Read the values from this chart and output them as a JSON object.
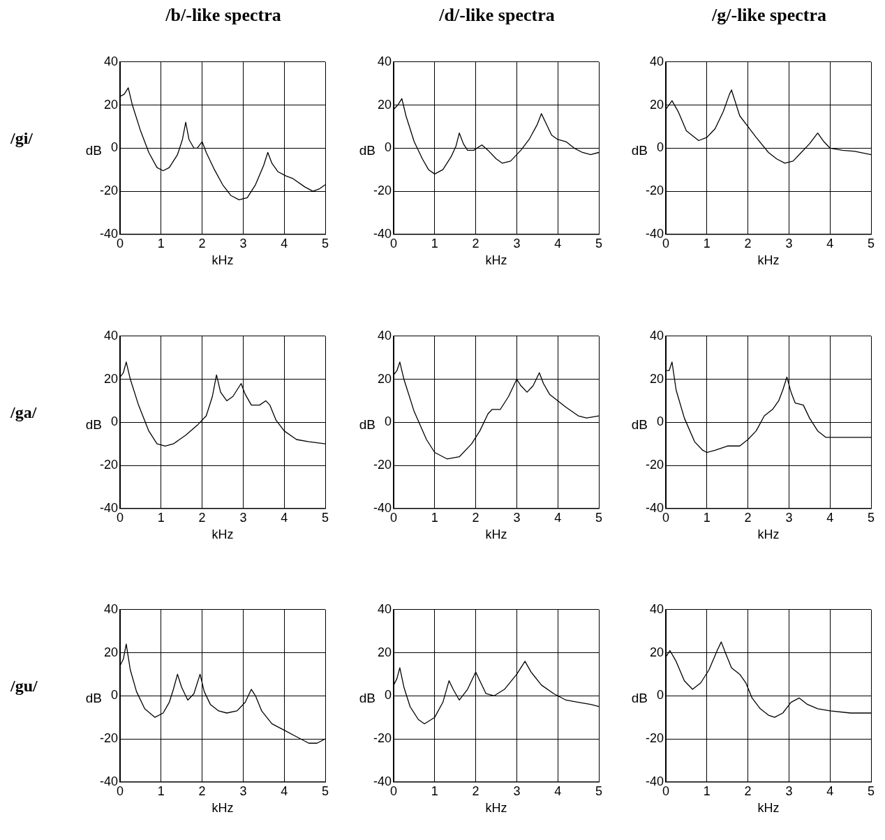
{
  "chart_data": [
    {
      "type": "line",
      "title": "/b/-like spectra",
      "annotations": [
        "/gi/"
      ],
      "xlabel": "kHz",
      "ylabel": "dB",
      "xlim": [
        0,
        5
      ],
      "ylim": [
        -40,
        40
      ],
      "xticks": [
        0,
        1,
        2,
        3,
        4,
        5
      ],
      "yticks": [
        -40,
        -20,
        0,
        20,
        40
      ],
      "grid": true,
      "legend": false,
      "series": [
        {
          "color": "#000000",
          "x": [
            0,
            0.1,
            0.2,
            0.3,
            0.5,
            0.7,
            0.9,
            1.05,
            1.2,
            1.4,
            1.52,
            1.6,
            1.68,
            1.8,
            1.88,
            2.0,
            2.1,
            2.3,
            2.5,
            2.7,
            2.9,
            3.1,
            3.3,
            3.5,
            3.6,
            3.7,
            3.85,
            4.05,
            4.2,
            4.5,
            4.7,
            4.85,
            5
          ],
          "values": [
            24,
            25,
            28,
            20,
            8,
            -2,
            -9,
            -10.5,
            -9,
            -3,
            4,
            12,
            4,
            0,
            0,
            3,
            -2,
            -10,
            -17,
            -22,
            -24,
            -23,
            -17,
            -8,
            -2,
            -7,
            -11,
            -13,
            -14,
            -18,
            -20,
            -19,
            -17
          ]
        }
      ]
    },
    {
      "type": "line",
      "title": "/d/-like spectra",
      "xlabel": "kHz",
      "ylabel": "dB",
      "xlim": [
        0,
        5
      ],
      "ylim": [
        -40,
        40
      ],
      "xticks": [
        0,
        1,
        2,
        3,
        4,
        5
      ],
      "yticks": [
        -40,
        -20,
        0,
        20,
        40
      ],
      "grid": true,
      "legend": false,
      "series": [
        {
          "color": "#000000",
          "x": [
            0,
            0.1,
            0.2,
            0.3,
            0.5,
            0.7,
            0.85,
            1.0,
            1.2,
            1.4,
            1.52,
            1.6,
            1.7,
            1.8,
            1.95,
            2.15,
            2.3,
            2.5,
            2.65,
            2.85,
            3.1,
            3.3,
            3.5,
            3.6,
            3.7,
            3.85,
            4.0,
            4.2,
            4.4,
            4.6,
            4.8,
            5
          ],
          "values": [
            18,
            20,
            23,
            15,
            3,
            -5,
            -10,
            -12,
            -10,
            -4,
            1,
            7,
            2,
            -1,
            -1,
            1.5,
            -1,
            -5,
            -7,
            -6,
            -1,
            4,
            11,
            16,
            12,
            6,
            4,
            3,
            0,
            -2,
            -3,
            -2
          ]
        }
      ]
    },
    {
      "type": "line",
      "title": "/g/-like spectra",
      "xlabel": "kHz",
      "ylabel": "dB",
      "xlim": [
        0,
        5
      ],
      "ylim": [
        -40,
        40
      ],
      "xticks": [
        0,
        1,
        2,
        3,
        4,
        5
      ],
      "yticks": [
        -40,
        -20,
        0,
        20,
        40
      ],
      "grid": true,
      "legend": false,
      "series": [
        {
          "color": "#000000",
          "x": [
            0,
            0.15,
            0.3,
            0.5,
            0.8,
            1.0,
            1.2,
            1.4,
            1.55,
            1.6,
            1.7,
            1.8,
            2.0,
            2.2,
            2.5,
            2.7,
            2.9,
            3.1,
            3.3,
            3.5,
            3.7,
            3.85,
            4.0,
            4.3,
            4.6,
            5
          ],
          "values": [
            18,
            22,
            17,
            8,
            3.5,
            5,
            9,
            17,
            25,
            27,
            21,
            15,
            10,
            5,
            -2,
            -5,
            -7,
            -6,
            -2,
            2,
            7,
            3,
            0,
            -1,
            -1.5,
            -3
          ]
        }
      ]
    },
    {
      "type": "line",
      "annotations": [
        "/ga/"
      ],
      "xlabel": "kHz",
      "ylabel": "dB",
      "xlim": [
        0,
        5
      ],
      "ylim": [
        -40,
        40
      ],
      "xticks": [
        0,
        1,
        2,
        3,
        4,
        5
      ],
      "yticks": [
        -40,
        -20,
        0,
        20,
        40
      ],
      "grid": true,
      "legend": false,
      "series": [
        {
          "color": "#000000",
          "x": [
            0,
            0.08,
            0.15,
            0.25,
            0.45,
            0.7,
            0.9,
            1.1,
            1.3,
            1.6,
            1.9,
            2.1,
            2.25,
            2.35,
            2.45,
            2.6,
            2.75,
            2.95,
            3.05,
            3.2,
            3.4,
            3.55,
            3.65,
            3.8,
            4.0,
            4.3,
            4.6,
            5
          ],
          "values": [
            21,
            23,
            28,
            20,
            8,
            -4,
            -10,
            -11,
            -10,
            -6,
            -1,
            3,
            12,
            22,
            14,
            10,
            12,
            18,
            13,
            8,
            8,
            10,
            8,
            1,
            -4,
            -8,
            -9,
            -10
          ]
        }
      ]
    },
    {
      "type": "line",
      "xlabel": "kHz",
      "ylabel": "dB",
      "xlim": [
        0,
        5
      ],
      "ylim": [
        -40,
        40
      ],
      "xticks": [
        0,
        1,
        2,
        3,
        4,
        5
      ],
      "yticks": [
        -40,
        -20,
        0,
        20,
        40
      ],
      "grid": true,
      "legend": false,
      "series": [
        {
          "color": "#000000",
          "x": [
            0,
            0.08,
            0.15,
            0.25,
            0.5,
            0.8,
            1.0,
            1.3,
            1.6,
            1.9,
            2.1,
            2.3,
            2.4,
            2.6,
            2.8,
            3.0,
            3.1,
            3.25,
            3.4,
            3.55,
            3.65,
            3.8,
            4.0,
            4.2,
            4.5,
            4.7,
            5
          ],
          "values": [
            22,
            24,
            28,
            20,
            5,
            -8,
            -14,
            -17,
            -16,
            -10,
            -4,
            4,
            6,
            6,
            12,
            20,
            17,
            14,
            17,
            23,
            18,
            13,
            10,
            7,
            3,
            2,
            3
          ]
        }
      ]
    },
    {
      "type": "line",
      "xlabel": "kHz",
      "ylabel": "dB",
      "xlim": [
        0,
        5
      ],
      "ylim": [
        -40,
        40
      ],
      "xticks": [
        0,
        1,
        2,
        3,
        4,
        5
      ],
      "yticks": [
        -40,
        -20,
        0,
        20,
        40
      ],
      "grid": true,
      "legend": false,
      "series": [
        {
          "color": "#000000",
          "x": [
            0,
            0.08,
            0.15,
            0.25,
            0.45,
            0.7,
            0.9,
            1.0,
            1.2,
            1.5,
            1.8,
            2.0,
            2.2,
            2.4,
            2.6,
            2.75,
            2.85,
            2.95,
            3.05,
            3.15,
            3.35,
            3.5,
            3.7,
            3.9,
            4.2,
            4.6,
            5
          ],
          "values": [
            24,
            24,
            28,
            15,
            2,
            -9,
            -13,
            -14,
            -13,
            -11,
            -11,
            -8,
            -4,
            3,
            6,
            10,
            15,
            21,
            14,
            9,
            8,
            2,
            -4,
            -7,
            -7,
            -7,
            -7
          ]
        }
      ]
    },
    {
      "type": "line",
      "annotations": [
        "/gu/"
      ],
      "xlabel": "kHz",
      "ylabel": "dB",
      "xlim": [
        0,
        5
      ],
      "ylim": [
        -40,
        40
      ],
      "xticks": [
        0,
        1,
        2,
        3,
        4,
        5
      ],
      "yticks": [
        -40,
        -20,
        0,
        20,
        40
      ],
      "grid": true,
      "legend": false,
      "series": [
        {
          "color": "#000000",
          "x": [
            0,
            0.08,
            0.15,
            0.25,
            0.4,
            0.6,
            0.85,
            1.05,
            1.2,
            1.3,
            1.4,
            1.5,
            1.65,
            1.8,
            1.95,
            2.05,
            2.2,
            2.4,
            2.6,
            2.85,
            3.05,
            3.2,
            3.3,
            3.45,
            3.7,
            4.0,
            4.3,
            4.6,
            4.8,
            5
          ],
          "values": [
            14,
            17,
            24,
            12,
            2,
            -6,
            -10,
            -8,
            -3,
            3,
            10,
            4,
            -2,
            1,
            10,
            2,
            -4,
            -7,
            -8,
            -7,
            -3,
            3,
            0,
            -7,
            -13,
            -16,
            -19,
            -22,
            -22,
            -20
          ]
        }
      ]
    },
    {
      "type": "line",
      "xlabel": "kHz",
      "ylabel": "dB",
      "xlim": [
        0,
        5
      ],
      "ylim": [
        -40,
        40
      ],
      "xticks": [
        0,
        1,
        2,
        3,
        4,
        5
      ],
      "yticks": [
        -40,
        -20,
        0,
        20,
        40
      ],
      "grid": true,
      "legend": false,
      "series": [
        {
          "color": "#000000",
          "x": [
            0,
            0.08,
            0.15,
            0.25,
            0.4,
            0.6,
            0.75,
            1.0,
            1.2,
            1.35,
            1.45,
            1.6,
            1.8,
            2.0,
            2.1,
            2.25,
            2.45,
            2.7,
            3.0,
            3.2,
            3.35,
            3.6,
            3.9,
            4.2,
            4.5,
            4.8,
            5
          ],
          "values": [
            5,
            8,
            13,
            4,
            -5,
            -11,
            -13,
            -10,
            -3,
            7,
            3,
            -2,
            3,
            11,
            7,
            1,
            0,
            3,
            10,
            16,
            11,
            5,
            1,
            -2,
            -3,
            -4,
            -5
          ]
        }
      ]
    },
    {
      "type": "line",
      "xlabel": "kHz",
      "ylabel": "dB",
      "xlim": [
        0,
        5
      ],
      "ylim": [
        -40,
        40
      ],
      "xticks": [
        0,
        1,
        2,
        3,
        4,
        5
      ],
      "yticks": [
        -40,
        -20,
        0,
        20,
        40
      ],
      "grid": true,
      "legend": false,
      "series": [
        {
          "color": "#000000",
          "x": [
            0,
            0.1,
            0.25,
            0.45,
            0.65,
            0.85,
            1.05,
            1.25,
            1.35,
            1.45,
            1.6,
            1.8,
            1.95,
            2.1,
            2.3,
            2.5,
            2.65,
            2.85,
            3.05,
            3.25,
            3.45,
            3.7,
            4.0,
            4.5,
            5
          ],
          "values": [
            18,
            21,
            16,
            7,
            3,
            6,
            12,
            21,
            25,
            20,
            13,
            10,
            6,
            -1,
            -6,
            -9,
            -10,
            -8,
            -3,
            -1,
            -4,
            -6,
            -7,
            -8,
            -8
          ]
        }
      ]
    }
  ]
}
